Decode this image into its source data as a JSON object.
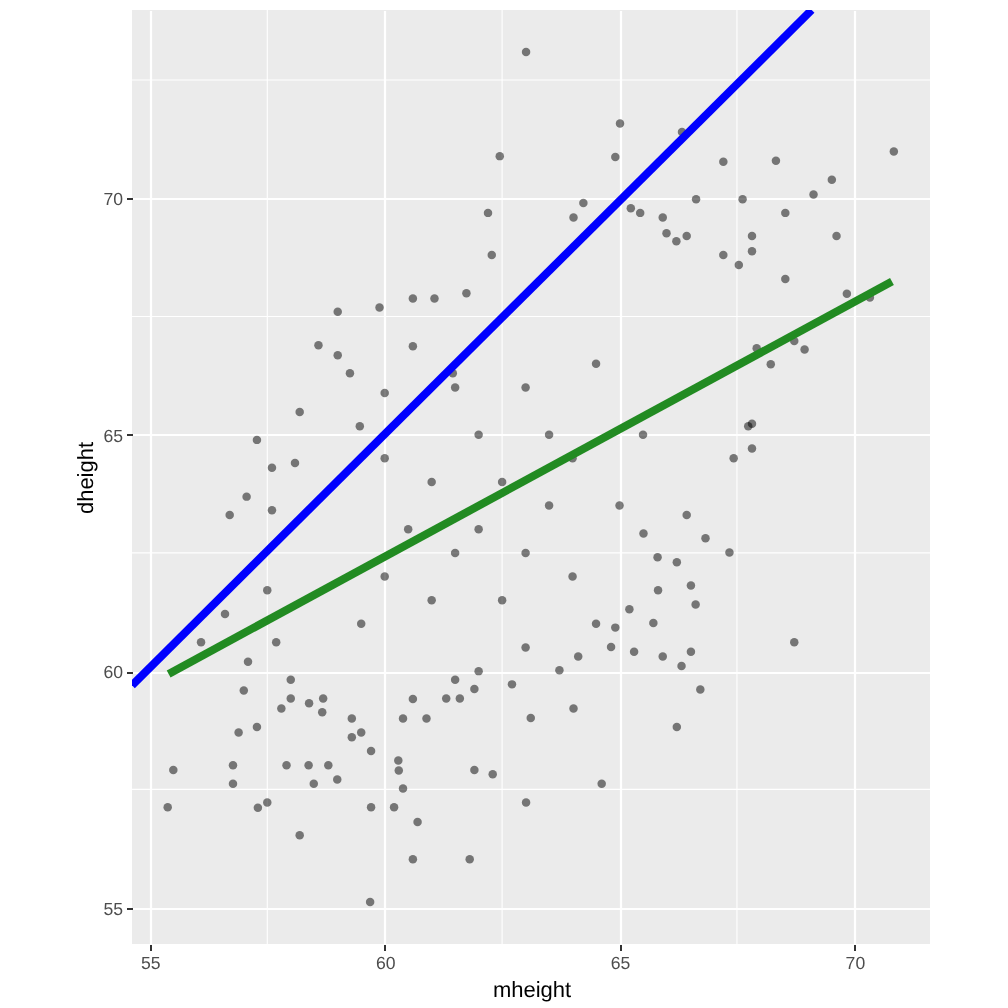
{
  "chart_data": {
    "type": "scatter",
    "xlabel": "mheight",
    "ylabel": "dheight",
    "xlim": [
      54.62,
      71.61
    ],
    "ylim": [
      54.23,
      73.98
    ],
    "xticks": [
      55,
      60,
      65,
      70
    ],
    "yticks": [
      55,
      60,
      65,
      70
    ],
    "grid": true,
    "series": [
      {
        "color": "#000000",
        "marker": "circle",
        "x": [
          62.45,
          62.2,
          62.28,
          59.0,
          59.89,
          58.59,
          59.0,
          58.19,
          57.28,
          57.6,
          58.09,
          57.06,
          60.6,
          61.06,
          61.74,
          59.26,
          59.47,
          60.0,
          60.6,
          61.45,
          63.01,
          65.01,
          64.91,
          66.33,
          67.21,
          68.33,
          70.84,
          69.52,
          69.13,
          66.63,
          67.62,
          68.53,
          69.62,
          69.84,
          70.33,
          68.94,
          68.72,
          68.53,
          68.22,
          67.92,
          67.82,
          67.74,
          67.43,
          67.82,
          65.92,
          65.44,
          65.24,
          64.23,
          64.02,
          67.82,
          67.82,
          67.54,
          67.21,
          66.43,
          66.21,
          66.0,
          56.7,
          57.6,
          56.09,
          56.6,
          57.5,
          57.09,
          57.0,
          56.89,
          56.77,
          56.77,
          55.5,
          55.38,
          57.3,
          57.5,
          57.28,
          58.19,
          57.91,
          58.38,
          58.49,
          58.8,
          58.99,
          59.69,
          59.71,
          59.71,
          60.2,
          60.29,
          60.3,
          60.39,
          60.7,
          60.6,
          61.81,
          61.91,
          62.3,
          57.69,
          58.0,
          57.8,
          58.0,
          58.39,
          58.69,
          58.67,
          59.3,
          59.5,
          59.3,
          60.39,
          60.6,
          60.89,
          61.31,
          61.6,
          61.5,
          61.91,
          68.72,
          66.22,
          66.72,
          64.62,
          63.01,
          63.11,
          64.02,
          67.34,
          66.83,
          66.52,
          66.32,
          65.92,
          65.31,
          64.82,
          64.12,
          66.62,
          65.72,
          66.52,
          65.82,
          65.21,
          64.91,
          63.72,
          62.71,
          66.22,
          65.81,
          65.51,
          66.43,
          60.0,
          60.5,
          61.0,
          61.0,
          61.5,
          62.0,
          62.0,
          62.5,
          62.5,
          63.0,
          63.0,
          63.5,
          63.5,
          64.0,
          64.0,
          64.5,
          65.0,
          61.5,
          60.0,
          59.5,
          63.0,
          62.0,
          64.5,
          65.5
        ],
        "values": [
          70.89,
          69.69,
          68.8,
          67.6,
          67.69,
          66.89,
          66.68,
          65.48,
          64.89,
          64.3,
          64.4,
          63.69,
          67.88,
          67.88,
          67.99,
          66.3,
          65.18,
          65.88,
          66.87,
          66.3,
          73.09,
          71.58,
          70.87,
          71.4,
          70.77,
          70.79,
          70.99,
          70.39,
          70.08,
          69.98,
          69.98,
          69.69,
          69.2,
          67.98,
          67.9,
          66.8,
          66.98,
          68.29,
          66.49,
          66.83,
          65.23,
          65.18,
          64.5,
          64.71,
          69.59,
          69.69,
          69.79,
          69.9,
          69.59,
          68.88,
          69.2,
          68.59,
          68.8,
          69.2,
          69.09,
          69.26,
          63.3,
          63.4,
          60.61,
          61.21,
          61.71,
          60.2,
          59.59,
          58.7,
          58.01,
          57.62,
          57.91,
          57.12,
          57.11,
          57.22,
          58.82,
          56.53,
          58.01,
          58.01,
          57.62,
          58.01,
          57.71,
          55.12,
          57.12,
          58.31,
          57.12,
          58.11,
          57.9,
          57.52,
          56.81,
          56.02,
          56.02,
          57.91,
          57.82,
          60.61,
          59.82,
          59.21,
          59.42,
          59.32,
          59.42,
          59.13,
          59.0,
          58.7,
          58.6,
          59.0,
          59.41,
          59.0,
          59.42,
          59.42,
          59.82,
          59.62,
          60.61,
          58.82,
          59.61,
          57.62,
          57.22,
          59.01,
          59.21,
          62.51,
          62.81,
          60.41,
          60.11,
          60.31,
          60.41,
          60.51,
          60.31,
          61.41,
          61.02,
          61.81,
          61.71,
          61.31,
          60.92,
          60.02,
          59.72,
          62.3,
          62.41,
          62.91,
          63.3,
          62.0,
          63.0,
          61.5,
          64.0,
          62.5,
          63.0,
          65.0,
          61.5,
          64.0,
          62.5,
          66.0,
          63.5,
          65.0,
          62.0,
          64.5,
          66.5,
          63.5,
          66.0,
          64.5,
          61.0,
          60.5,
          60.0,
          61.0,
          65.0
        ]
      },
      {
        "type": "line",
        "color": "#0000ff",
        "line_style": "solid",
        "x": [
          54.62,
          69.09
        ],
        "values": [
          59.7,
          73.98
        ]
      },
      {
        "type": "line",
        "color": "#228b22",
        "line_style": "solid",
        "x": [
          55.4,
          70.8
        ],
        "values": [
          59.94,
          68.24
        ]
      }
    ]
  }
}
